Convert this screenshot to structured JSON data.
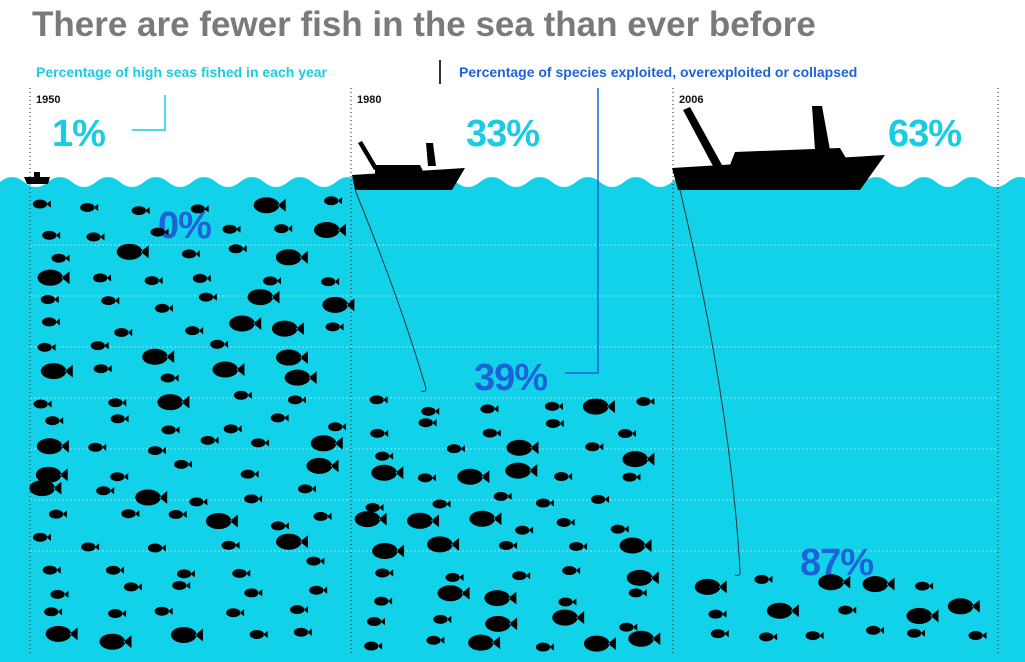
{
  "header": {
    "title": "There are fewer fish in the sea than ever before"
  },
  "legend": {
    "high_seas": "Percentage of high seas fished in each year",
    "species": "Percentage of species exploited, overexploited or collapsed"
  },
  "panels": [
    {
      "year": "1950",
      "high_seas": "1%",
      "species": "0%"
    },
    {
      "year": "1980",
      "high_seas": "33%",
      "species": "39%"
    },
    {
      "year": "2006",
      "high_seas": "63%",
      "species": "87%"
    }
  ]
}
